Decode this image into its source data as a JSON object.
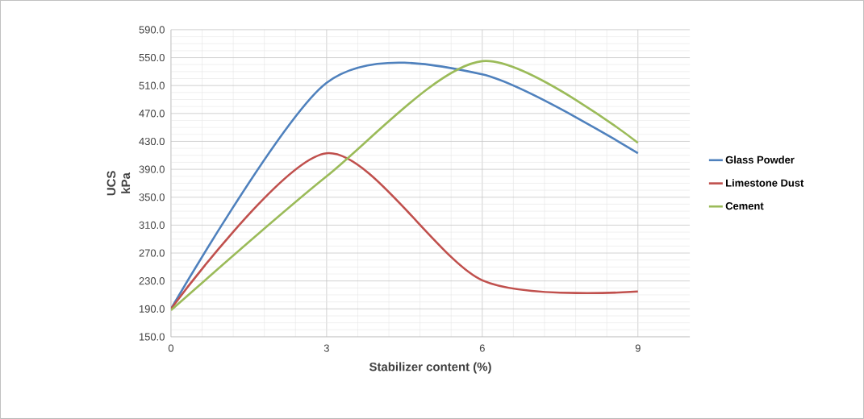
{
  "chart_data": {
    "type": "line",
    "xlabel": "Stabilizer content (%)",
    "ylabel": "UCS kPa",
    "x": [
      0,
      3,
      6,
      9
    ],
    "series": [
      {
        "name": "Glass Powder",
        "color": "#4f81bd",
        "values": [
          190,
          514,
          526,
          413
        ]
      },
      {
        "name": "Limestone Dust",
        "color": "#c0504d",
        "values": [
          190,
          413,
          231,
          215
        ]
      },
      {
        "name": "Cement",
        "color": "#9bbb59",
        "values": [
          188,
          380,
          545,
          428
        ]
      }
    ],
    "xlim": [
      0,
      10
    ],
    "xticks": [
      0,
      3,
      6,
      9
    ],
    "ylim": [
      150,
      590
    ],
    "yticks": [
      {
        "value": 150,
        "label": "150.0"
      },
      {
        "value": 190,
        "label": "190.0"
      },
      {
        "value": 230,
        "label": "230.0"
      },
      {
        "value": 270,
        "label": "270.0"
      },
      {
        "value": 310,
        "label": "310.0"
      },
      {
        "value": 350,
        "label": "350.0"
      },
      {
        "value": 390,
        "label": "390.0"
      },
      {
        "value": 430,
        "label": "430.0"
      },
      {
        "value": 470,
        "label": "470.0"
      },
      {
        "value": 510,
        "label": "510.0"
      },
      {
        "value": 550,
        "label": "550.0"
      },
      {
        "value": 590,
        "label": "590.0"
      }
    ],
    "grid": true,
    "legend": "right",
    "marker": "none",
    "line_style": "solid"
  }
}
